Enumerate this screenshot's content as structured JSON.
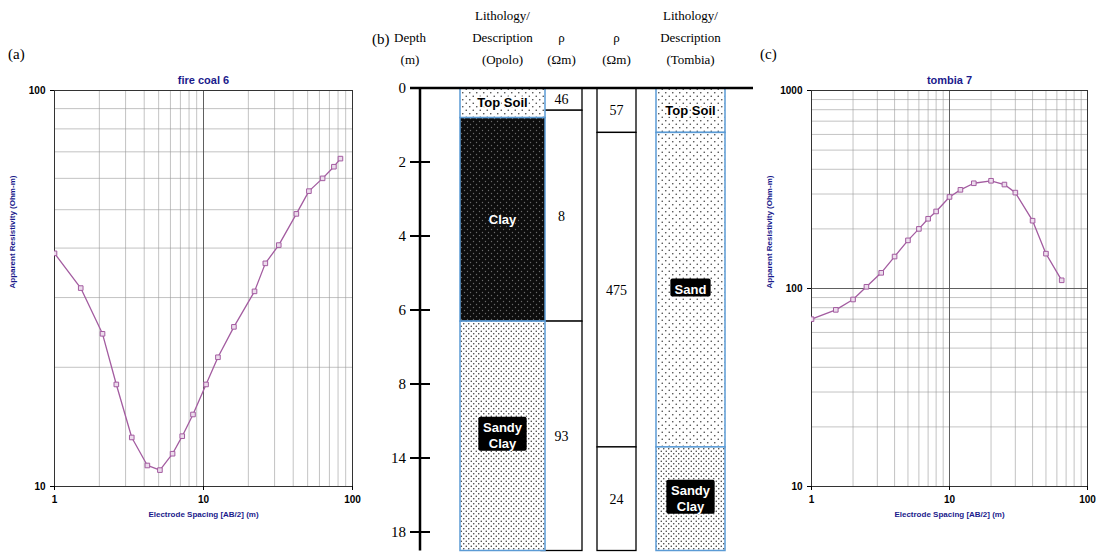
{
  "chart_data": [
    {
      "type": "line",
      "panel_label": "(a)",
      "title": "fire coal 6",
      "x_label": "Electrode Spacing [AB/2] (m)",
      "y_label": "Apparent Resistivity (Ohm-m)",
      "x": [
        1,
        1.5,
        2.1,
        2.6,
        3.3,
        4.2,
        5.1,
        6.2,
        7.2,
        8.5,
        10.4,
        12.5,
        16,
        22,
        26,
        32,
        42,
        51,
        63,
        75,
        83
      ],
      "values": [
        38.8,
        31.7,
        24.3,
        18.1,
        13.3,
        11.3,
        11.0,
        12.1,
        13.4,
        15.2,
        18.1,
        21.2,
        25.3,
        31.1,
        36.6,
        40.7,
        48.8,
        55.7,
        60.0,
        64.2,
        67.3
      ],
      "color": "#a35ca0",
      "marker": "square",
      "log": true,
      "grid": true,
      "xlim": [
        1,
        100
      ],
      "ylim": [
        10,
        100
      ],
      "xticks": [
        1,
        10,
        100
      ],
      "yticks": [
        10,
        100
      ]
    },
    {
      "type": "line",
      "panel_label": "(c)",
      "title": "tombia 7",
      "x_label": "Electrode Spacing [AB/2] (m)",
      "y_label": "Apparent Resistivity (Ohm-m)",
      "x": [
        1,
        1.5,
        2,
        2.5,
        3.2,
        4,
        5,
        6,
        7,
        8,
        10,
        12,
        15,
        20,
        25,
        30,
        40,
        50,
        65
      ],
      "values": [
        70,
        78,
        88,
        102,
        120,
        145,
        175,
        200,
        225,
        245,
        290,
        315,
        340,
        350,
        335,
        305,
        220,
        150,
        110
      ],
      "color": "#a35ca0",
      "marker": "square",
      "log": true,
      "grid": true,
      "xlim": [
        1,
        100
      ],
      "ylim": [
        10,
        1000
      ],
      "xticks": [
        1,
        10,
        100
      ],
      "yticks": [
        10,
        100,
        1000
      ]
    }
  ],
  "diagram": {
    "panel_label": "(b)",
    "depth_header": "Depth (m)",
    "depth_ticks": [
      0,
      2,
      4,
      6,
      8,
      14,
      18
    ],
    "depth_range": [
      0,
      19
    ],
    "sections": [
      {
        "lithology_header": "Lithology/ Description (Opolo)",
        "resistivity_header": "ρ (Ωm)",
        "layers": [
          {
            "label": "Top Soil",
            "top": 0,
            "bottom": 0.8
          },
          {
            "label": "Clay",
            "top": 0.8,
            "bottom": 6.3
          },
          {
            "label": "Sandy Clay",
            "top": 6.3,
            "bottom": 19
          }
        ],
        "resistivity": [
          {
            "value": 46,
            "top": 0,
            "bottom": 0.6
          },
          {
            "value": 8,
            "top": 0.6,
            "bottom": 6.3
          },
          {
            "value": 93,
            "top": 6.3,
            "bottom": 19
          }
        ]
      },
      {
        "lithology_header": "Lithology/ Description (Tombia)",
        "resistivity_header": "ρ (Ωm)",
        "layers": [
          {
            "label": "Top Soil",
            "top": 0,
            "bottom": 1.2
          },
          {
            "label": "Sand",
            "top": 1.2,
            "bottom": 13.1
          },
          {
            "label": "Sandy Clay",
            "top": 13.1,
            "bottom": 19
          }
        ],
        "resistivity": [
          {
            "value": 57,
            "top": 0,
            "bottom": 1.2
          },
          {
            "value": 475,
            "top": 1.2,
            "bottom": 13.1
          },
          {
            "value": 24,
            "top": 13.1,
            "bottom": 19
          }
        ]
      }
    ]
  }
}
